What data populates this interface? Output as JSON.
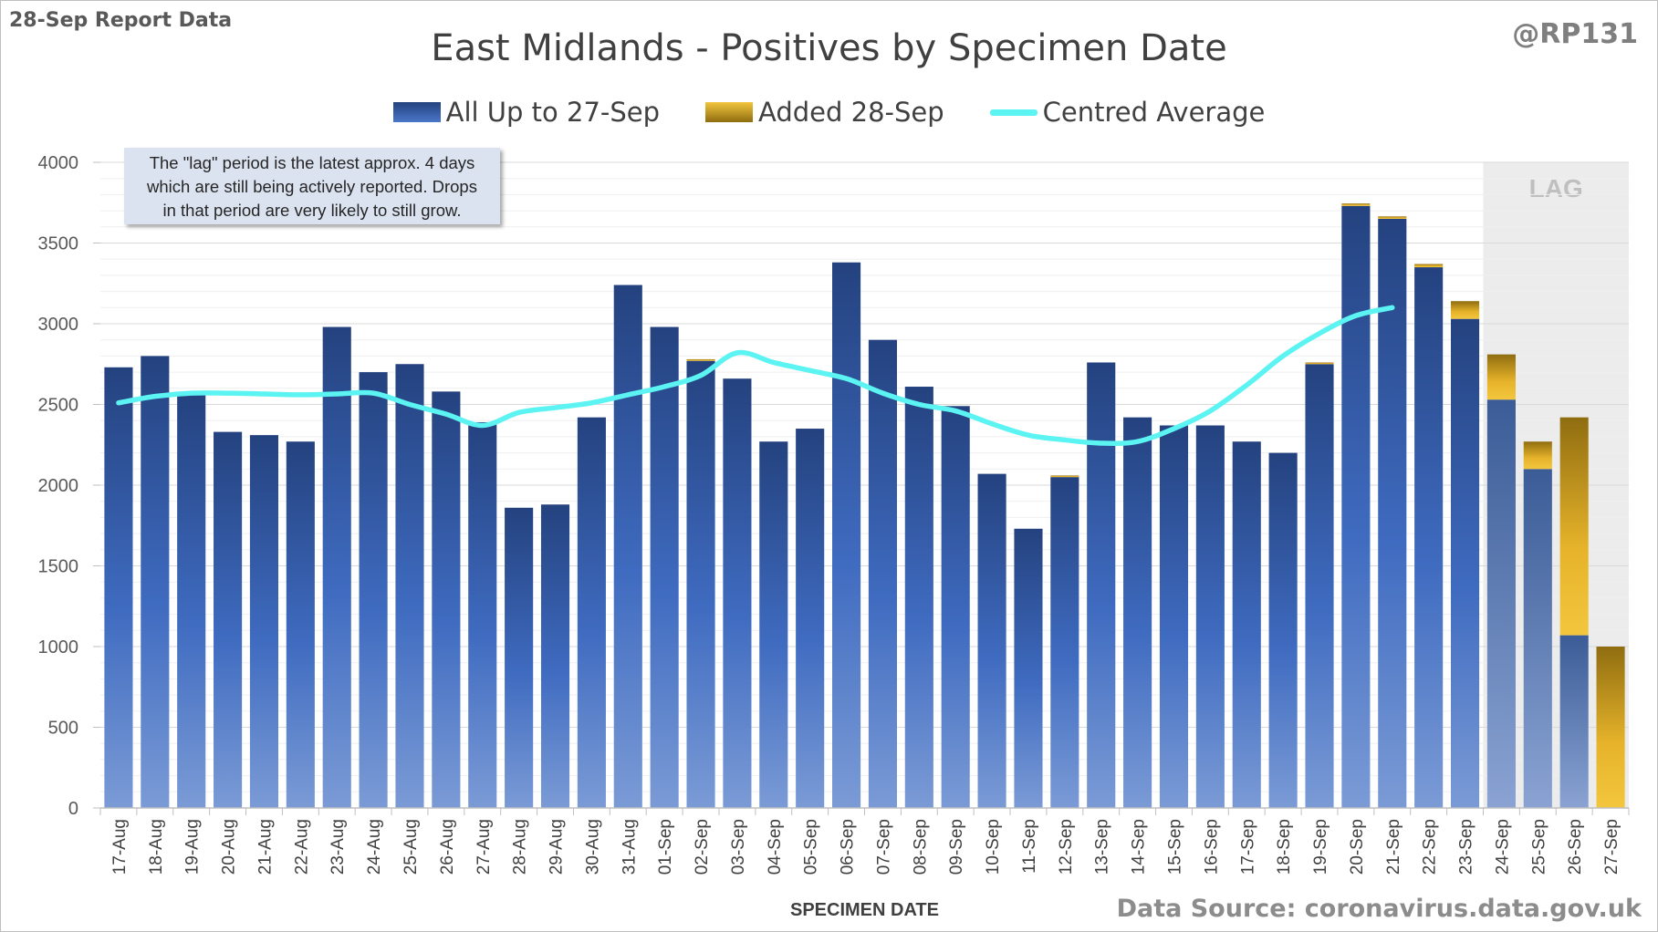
{
  "header": {
    "report_label": "28-Sep Report Data",
    "handle": "@RP131",
    "source": "Data Source: coronavirus.data.gov.uk"
  },
  "legend": {
    "series1": "All Up to 27-Sep",
    "series2": "Added 28-Sep",
    "series3": "Centred Average"
  },
  "note": {
    "line1": "The \"lag\" period is the latest approx. 4 days",
    "line2": "which are still being actively reported.  Drops",
    "line3": "in that period are very likely to still grow."
  },
  "lag_label": "LAG",
  "colors": {
    "bar_top": "#24427f",
    "bar_bottom": "#4a76c8",
    "added_top": "#f3c63d",
    "added_bottom": "#8f6d10",
    "average_line": "#5cf3f3",
    "lag_shade": "#ececec"
  },
  "chart_data": {
    "type": "bar",
    "title": "East Midlands - Positives by Specimen Date",
    "xlabel": "SPECIMEN DATE",
    "ylabel": "",
    "ylim": [
      0,
      4000
    ],
    "yticks": [
      0,
      500,
      1000,
      1500,
      2000,
      2500,
      3000,
      3500,
      4000
    ],
    "grid": true,
    "stacked": true,
    "legend_position": "top",
    "lag_region_categories": [
      "24-Sep",
      "25-Sep",
      "26-Sep",
      "27-Sep"
    ],
    "categories": [
      "17-Aug",
      "18-Aug",
      "19-Aug",
      "20-Aug",
      "21-Aug",
      "22-Aug",
      "23-Aug",
      "24-Aug",
      "25-Aug",
      "26-Aug",
      "27-Aug",
      "28-Aug",
      "29-Aug",
      "30-Aug",
      "31-Aug",
      "01-Sep",
      "02-Sep",
      "03-Sep",
      "04-Sep",
      "05-Sep",
      "06-Sep",
      "07-Sep",
      "08-Sep",
      "09-Sep",
      "10-Sep",
      "11-Sep",
      "12-Sep",
      "13-Sep",
      "14-Sep",
      "15-Sep",
      "16-Sep",
      "17-Sep",
      "18-Sep",
      "19-Sep",
      "20-Sep",
      "21-Sep",
      "22-Sep",
      "23-Sep",
      "24-Sep",
      "25-Sep",
      "26-Sep",
      "27-Sep"
    ],
    "series": [
      {
        "name": "All Up to 27-Sep",
        "type": "bar",
        "values": [
          2730,
          2800,
          2560,
          2330,
          2310,
          2270,
          2980,
          2700,
          2750,
          2580,
          2390,
          1860,
          1880,
          2420,
          3240,
          2980,
          2770,
          2660,
          2270,
          2350,
          3380,
          2900,
          2610,
          2490,
          2070,
          1730,
          2050,
          2760,
          2420,
          2370,
          2370,
          2270,
          2200,
          2750,
          3730,
          3650,
          3350,
          3030,
          2530,
          2100,
          1070,
          0
        ]
      },
      {
        "name": "Added 28-Sep",
        "type": "bar",
        "values": [
          0,
          0,
          0,
          0,
          0,
          0,
          0,
          0,
          0,
          0,
          0,
          0,
          0,
          0,
          0,
          0,
          10,
          0,
          0,
          0,
          0,
          0,
          0,
          0,
          0,
          0,
          10,
          0,
          0,
          0,
          0,
          0,
          0,
          10,
          15,
          15,
          20,
          110,
          280,
          170,
          1350,
          1000
        ]
      },
      {
        "name": "Centred Average",
        "type": "line",
        "values": [
          2510,
          2550,
          2570,
          2570,
          2565,
          2560,
          2565,
          2570,
          2500,
          2440,
          2370,
          2450,
          2480,
          2510,
          2560,
          2610,
          2680,
          2820,
          2760,
          2710,
          2660,
          2570,
          2500,
          2460,
          2380,
          2310,
          2280,
          2260,
          2270,
          2350,
          2460,
          2620,
          2800,
          2940,
          3050,
          3100,
          null,
          null,
          null,
          null,
          null,
          null
        ]
      }
    ]
  }
}
